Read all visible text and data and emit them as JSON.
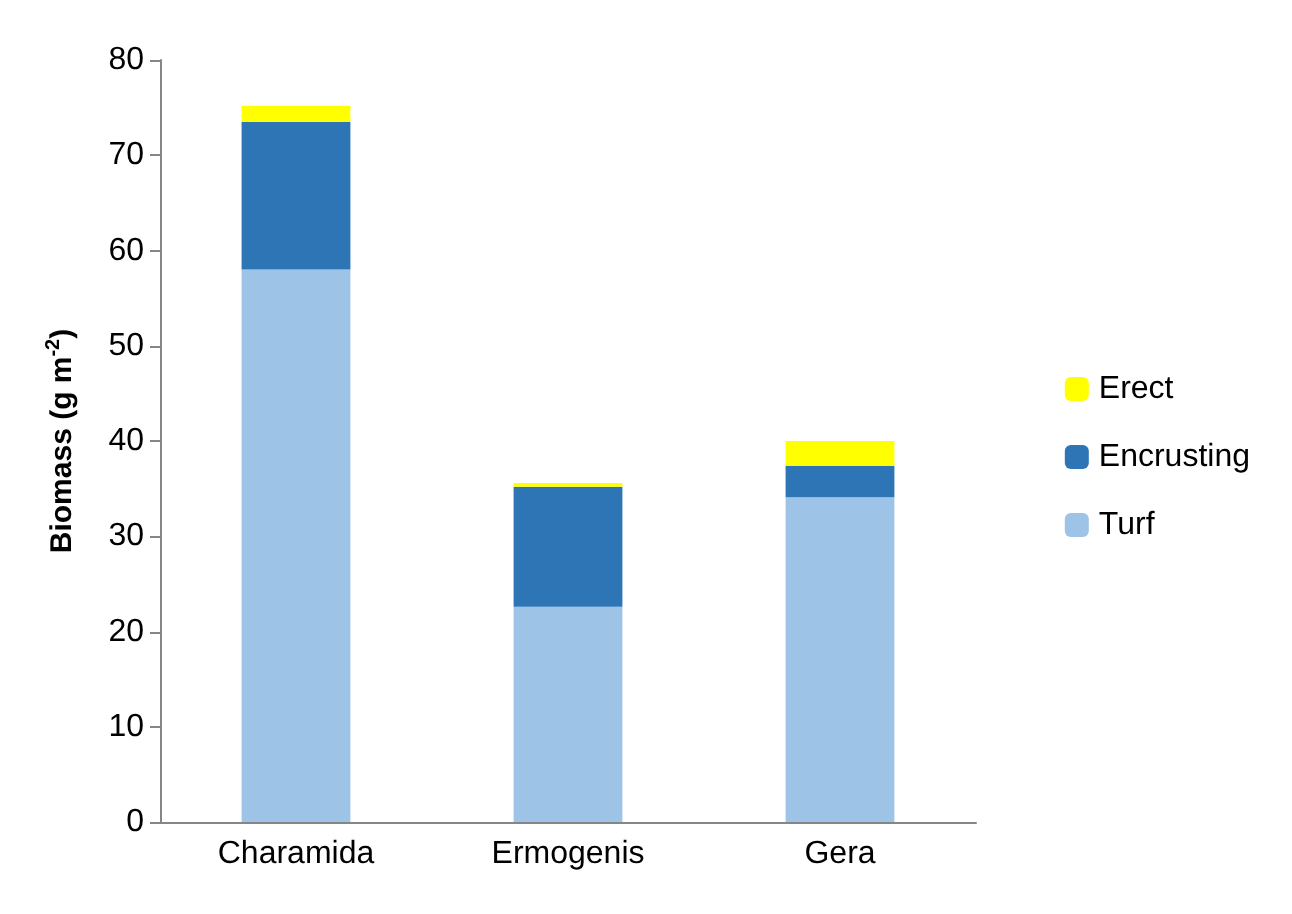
{
  "chart_data": {
    "type": "bar",
    "stacked": true,
    "ylabel": "Biomass (g m$^{-2}$)",
    "categories": [
      "Charamida",
      "Ermogenis",
      "Gera"
    ],
    "series": [
      {
        "name": "Turf",
        "color": "#9dc3e6",
        "values": [
          58,
          22.6,
          34.1
        ]
      },
      {
        "name": "Encrusting",
        "color": "#2e75b6",
        "values": [
          15.5,
          12.6,
          3.3
        ]
      },
      {
        "name": "Erect",
        "color": "#ffff00",
        "values": [
          1.7,
          0.4,
          2.6
        ]
      }
    ],
    "ylim": [
      0,
      80
    ],
    "yticks": [
      0,
      10,
      20,
      30,
      40,
      50,
      60,
      70,
      80
    ],
    "grid": false,
    "legend": "right"
  }
}
